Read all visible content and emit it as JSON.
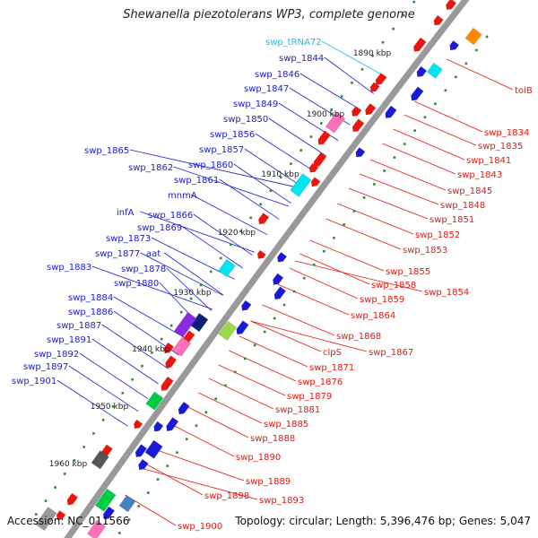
{
  "title": "Shewanella piezotolerans WP3, complete genome",
  "accession": "Accession: NC_011566",
  "topology": "Topology: circular; Length: 5,396,476 bp; Genes: 5,047",
  "colors": {
    "backbone": "#999999",
    "reverse_label": "#1a1ad6",
    "forward_label": "#e8160c",
    "trna_label": "#22bbe6",
    "tick": "#2e8b2e"
  },
  "ticks": [
    "1890 kbp",
    "1900 kbp",
    "1910 kbp",
    "1920 kbp",
    "1930 kbp",
    "1940 kbp",
    "1950 kbp",
    "1960 kbp"
  ],
  "left_labels": [
    "swp_tRNA72",
    "swp_1844",
    "swp_1846",
    "swp_1847",
    "swp_1849",
    "swp_1850",
    "swp_1856",
    "swp_1857",
    "swp_1865",
    "swp_1860",
    "swp_1862",
    "swp_1861",
    "mnmA",
    "infA",
    "swp_1866",
    "swp_1869",
    "swp_1873",
    "aat",
    "swp_1877",
    "swp_1878",
    "swp_1883",
    "swp_1880",
    "swp_1884",
    "swp_1886",
    "swp_1887",
    "swp_1891",
    "swp_1892",
    "swp_1897",
    "swp_1901"
  ],
  "right_labels": [
    "tolB",
    "swp_1834",
    "swp_1835",
    "swp_1841",
    "swp_1843",
    "swp_1845",
    "swp_1848",
    "swp_1851",
    "swp_1852",
    "swp_1853",
    "swp_1855",
    "swp_1858",
    "swp_1854",
    "swp_1859",
    "swp_1864",
    "swp_1868",
    "swp_1867",
    "clpS",
    "swp_1871",
    "swp_1876",
    "swp_1879",
    "swp_1881",
    "swp_1885",
    "swp_1888",
    "swp_1890",
    "swp_1889",
    "swp_1898",
    "swp_1893",
    "swp_1900"
  ]
}
